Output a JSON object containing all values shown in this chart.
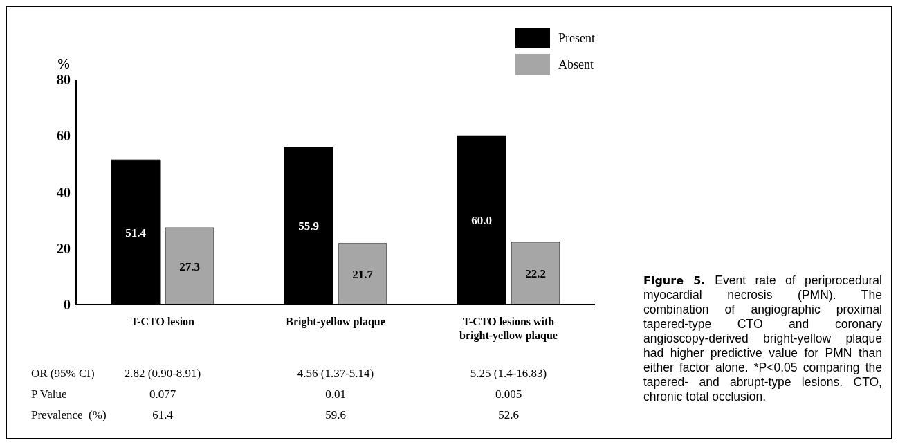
{
  "chart_data": {
    "type": "bar",
    "categories": [
      "T-CTO lesion",
      "Bright-yellow plaque",
      "T-CTO lesions with bright-yellow plaque"
    ],
    "series": [
      {
        "name": "Present",
        "color": "#000000",
        "values": [
          51.4,
          55.9,
          60.0
        ],
        "value_labels": [
          "51.4",
          "55.9",
          "60.0"
        ]
      },
      {
        "name": "Absent",
        "color": "#a6a6a6",
        "values": [
          27.3,
          21.7,
          22.2
        ],
        "value_labels": [
          "27.3",
          "21.7",
          "22.2"
        ]
      }
    ],
    "ylabel": "%",
    "ylim": [
      0,
      80
    ],
    "yticks": [
      0,
      20,
      40,
      60,
      80
    ],
    "legend": "top right",
    "annotations": [
      "OR (95% CI)",
      "2.82 (0.90-8.91)",
      "4.56 (1.37-5.14)",
      "5.25 (1.4-16.83)",
      "P Value",
      "0.077",
      "0.01",
      "0.005",
      "Prevalence  (%)",
      "61.4",
      "59.6",
      "52.6",
      "Figure 5.",
      "Event rate of periprocedural myocardial necrosis (PMN). The combination of angiographic proximal tapered-type CTO and coronary angioscopy-derived bright-yellow plaque had higher predictive value for PMN than either factor alone. *P<0.05 comparing the tapered- and abrupt-type lesions. CTO, chronic total occlusion."
    ]
  }
}
